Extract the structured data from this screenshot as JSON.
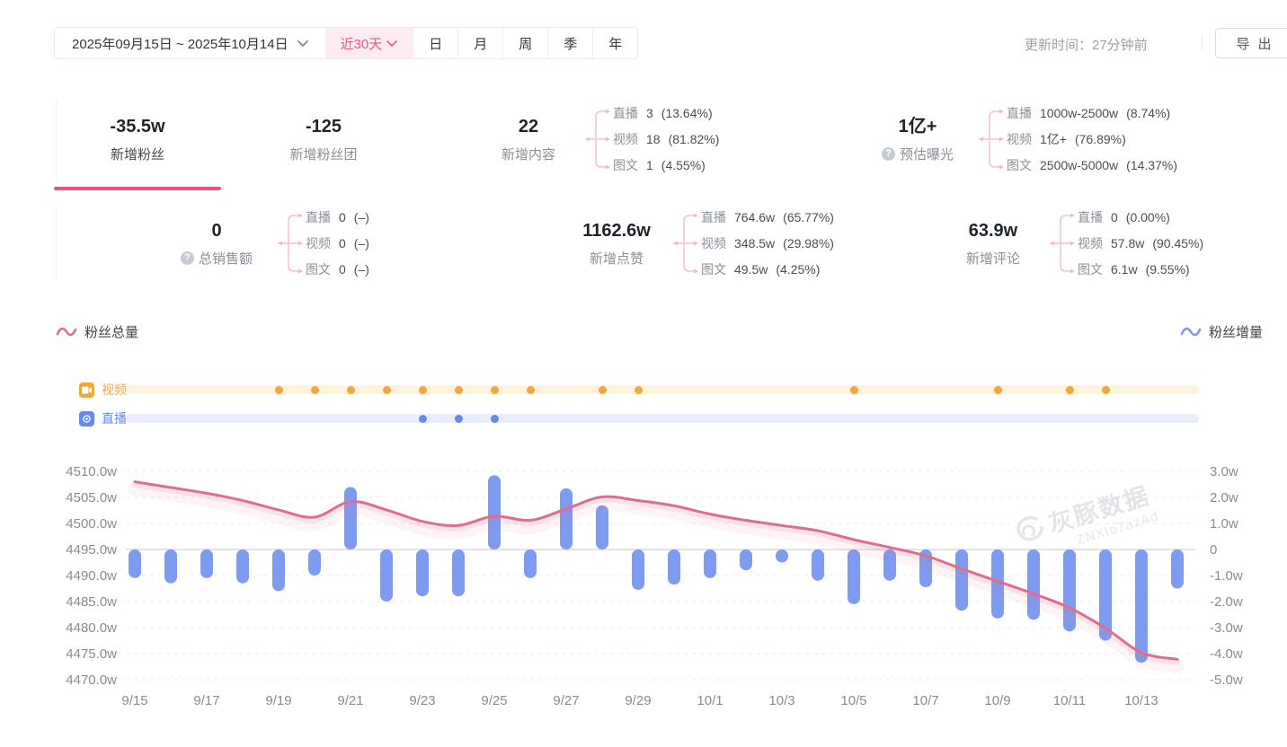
{
  "toolbar": {
    "date_range": "2025年09月15日 ~ 2025年10月14日",
    "quick_range": "近30天",
    "period_tabs": [
      "日",
      "月",
      "周",
      "季",
      "年"
    ],
    "update_time": "更新时间：27分钟前",
    "export_label": "导出"
  },
  "metrics": {
    "row1": [
      {
        "value": "-35.5w",
        "label": "新增粉丝",
        "selected": true
      },
      {
        "value": "-125",
        "label": "新增粉丝团",
        "selected": false
      },
      {
        "value": "22",
        "label": "新增内容",
        "selected": false,
        "breakdown": [
          {
            "name": "直播",
            "value": "3",
            "pct": "(13.64%)"
          },
          {
            "name": "视频",
            "value": "18",
            "pct": "(81.82%)"
          },
          {
            "name": "图文",
            "value": "1",
            "pct": "(4.55%)"
          }
        ]
      },
      {
        "value": "1亿+",
        "label": "预估曝光",
        "selected": false,
        "has_help": true,
        "breakdown": [
          {
            "name": "直播",
            "value": "1000w-2500w",
            "pct": "(8.74%)"
          },
          {
            "name": "视频",
            "value": "1亿+",
            "pct": "(76.89%)"
          },
          {
            "name": "图文",
            "value": "2500w-5000w",
            "pct": "(14.37%)"
          }
        ]
      }
    ],
    "row2": [
      {
        "value": "0",
        "label": "总销售额",
        "has_help": true,
        "breakdown": [
          {
            "name": "直播",
            "value": "0",
            "pct": "(–)"
          },
          {
            "name": "视频",
            "value": "0",
            "pct": "(–)"
          },
          {
            "name": "图文",
            "value": "0",
            "pct": "(–)"
          }
        ]
      },
      {
        "value": "1162.6w",
        "label": "新增点赞",
        "breakdown": [
          {
            "name": "直播",
            "value": "764.6w",
            "pct": "(65.77%)"
          },
          {
            "name": "视频",
            "value": "348.5w",
            "pct": "(29.98%)"
          },
          {
            "name": "图文",
            "value": "49.5w",
            "pct": "(4.25%)"
          }
        ]
      },
      {
        "value": "63.9w",
        "label": "新增评论",
        "breakdown": [
          {
            "name": "直播",
            "value": "0",
            "pct": "(0.00%)"
          },
          {
            "name": "视频",
            "value": "57.8w",
            "pct": "(90.45%)"
          },
          {
            "name": "图文",
            "value": "6.1w",
            "pct": "(9.55%)"
          }
        ]
      }
    ]
  },
  "legend": {
    "left": "粉丝总量",
    "right": "粉丝增量"
  },
  "watermark": {
    "brand": "灰豚数据",
    "code": "ZNXto7azAd"
  },
  "chart_data": {
    "type": "line+bar",
    "x": [
      "9/15",
      "9/16",
      "9/17",
      "9/18",
      "9/19",
      "9/20",
      "9/21",
      "9/22",
      "9/23",
      "9/24",
      "9/25",
      "9/26",
      "9/27",
      "9/28",
      "9/29",
      "9/30",
      "10/1",
      "10/2",
      "10/3",
      "10/4",
      "10/5",
      "10/6",
      "10/7",
      "10/8",
      "10/9",
      "10/10",
      "10/11",
      "10/12",
      "10/13",
      "10/14"
    ],
    "x_tick_labels": [
      "9/15",
      "9/17",
      "9/19",
      "9/21",
      "9/23",
      "9/25",
      "9/27",
      "9/29",
      "10/1",
      "10/3",
      "10/5",
      "10/7",
      "10/9",
      "10/11",
      "10/13"
    ],
    "left_axis": {
      "title": "粉丝总量",
      "unit": "w",
      "min": 4470,
      "max": 4510,
      "step": 5,
      "labels": [
        "4510.0w",
        "4505.0w",
        "4500.0w",
        "4495.0w",
        "4490.0w",
        "4485.0w",
        "4480.0w",
        "4475.0w",
        "4470.0w"
      ]
    },
    "right_axis": {
      "title": "粉丝增量",
      "unit": "w",
      "min": -5,
      "max": 3,
      "step": 1,
      "labels": [
        "3.0w",
        "2.0w",
        "1.0w",
        "0",
        "-1.0w",
        "-2.0w",
        "-3.0w",
        "-4.0w",
        "-5.0w"
      ]
    },
    "zero_line_left_value": 4495,
    "grid": true,
    "legend_position": "top",
    "series": [
      {
        "name": "粉丝总量",
        "type": "line",
        "axis": "left",
        "color": "#df6e8e",
        "values": [
          4508.0,
          4506.9,
          4505.8,
          4504.4,
          4502.6,
          4501.2,
          4504.2,
          4502.6,
          4500.4,
          4499.6,
          4501.4,
          4500.6,
          4502.8,
          4505.1,
          4504.4,
          4503.4,
          4501.8,
          4500.6,
          4499.6,
          4498.6,
          4496.9,
          4495.4,
          4493.8,
          4491.3,
          4488.9,
          4486.5,
          4483.8,
          4479.9,
          4475.2,
          4473.9
        ]
      },
      {
        "name": "粉丝增量",
        "type": "bar",
        "axis": "right",
        "color": "#7d9cf1",
        "values": [
          -1.1,
          -1.3,
          -1.1,
          -1.3,
          -1.6,
          -1.0,
          2.4,
          -2.0,
          -1.8,
          -1.8,
          2.85,
          -1.1,
          2.35,
          1.7,
          -1.55,
          -1.35,
          -1.1,
          -0.8,
          -0.5,
          -1.2,
          -2.1,
          -1.2,
          -1.45,
          -2.35,
          -2.65,
          -2.7,
          -3.15,
          -3.5,
          -4.35,
          -1.5
        ]
      }
    ],
    "events": [
      {
        "label": "视频",
        "color": "#f0a83c",
        "track_color": "#fbf3dc",
        "dates": [
          "9/19",
          "9/20",
          "9/21",
          "9/22",
          "9/23",
          "9/24",
          "9/25",
          "9/26",
          "9/28",
          "9/29",
          "10/5",
          "10/9",
          "10/11",
          "10/12"
        ]
      },
      {
        "label": "直播",
        "color": "#6389ef",
        "track_color": "#e9edfb",
        "dates": [
          "9/23",
          "9/24",
          "9/25"
        ]
      }
    ]
  }
}
